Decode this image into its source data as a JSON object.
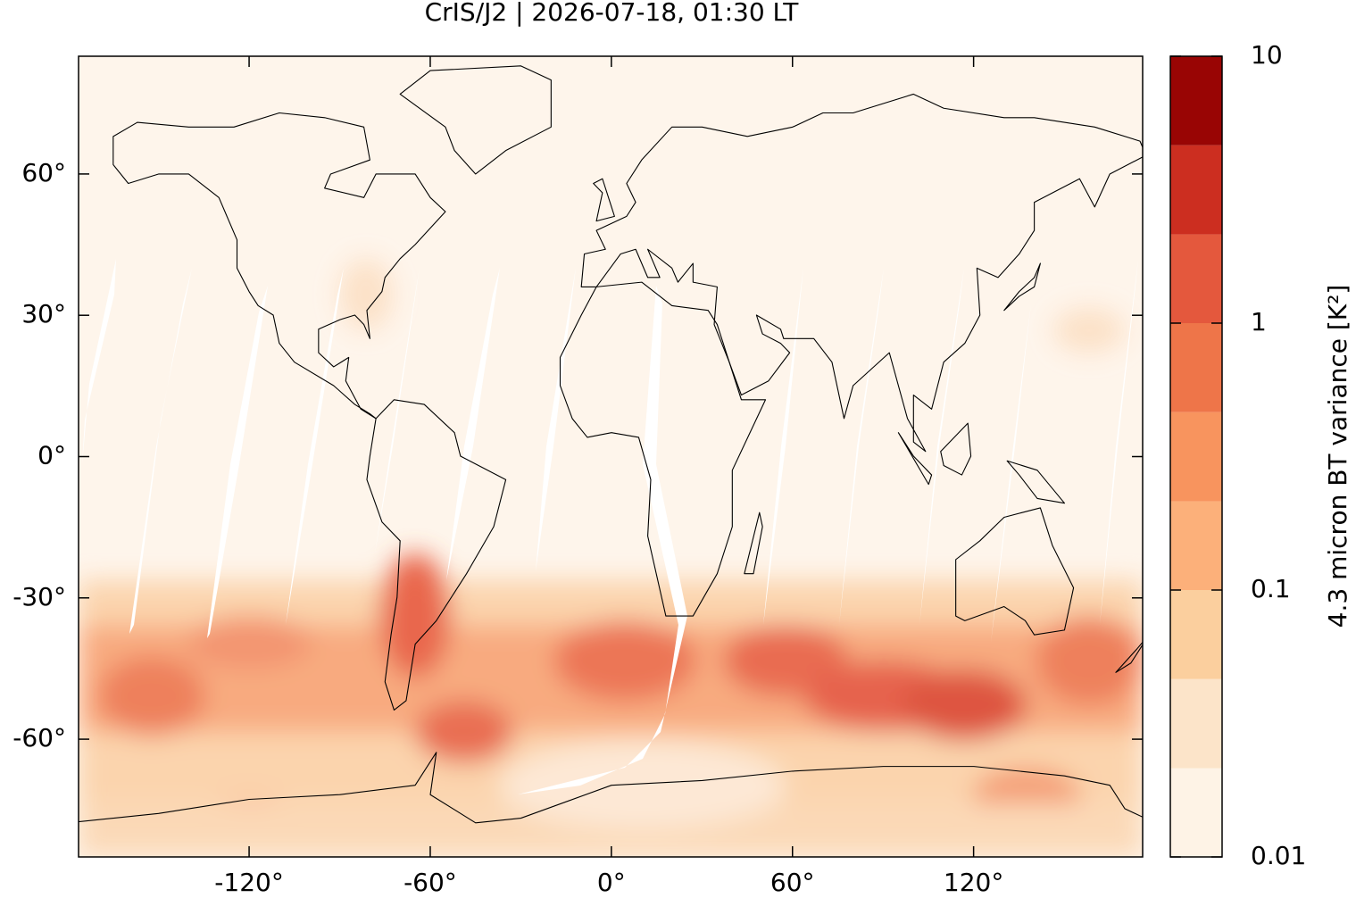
{
  "chart_data": {
    "type": "map",
    "title": "CrIS/J2 | 2026-07-18, 01:30 LT",
    "xlim": [
      -176.5,
      176
    ],
    "ylim": [
      -85,
      85
    ],
    "xticks": [
      {
        "value": -120,
        "label": "-120°"
      },
      {
        "value": -60,
        "label": "-60°"
      },
      {
        "value": 0,
        "label": "0°"
      },
      {
        "value": 60,
        "label": "60°"
      },
      {
        "value": 120,
        "label": "120°"
      }
    ],
    "yticks": [
      {
        "value": -60,
        "label": "-60°"
      },
      {
        "value": -30,
        "label": "-30°"
      },
      {
        "value": 0,
        "label": "0°"
      },
      {
        "value": 30,
        "label": "30°"
      },
      {
        "value": 60,
        "label": "60°"
      }
    ],
    "colorbar": {
      "label": "4.3 micron BT variance [K²]",
      "log_scale": true,
      "lim": [
        0.01,
        10
      ],
      "ticks": [
        0.01,
        0.1,
        1,
        10
      ],
      "levels": [
        0.01,
        0.0215,
        0.0464,
        0.1,
        0.215,
        0.464,
        1,
        2.15,
        4.64,
        10
      ],
      "colors": [
        "#fef3e6",
        "#fce4c9",
        "#fbcf9e",
        "#fcb07a",
        "#f8945e",
        "#ee7549",
        "#e4583d",
        "#cc2e20",
        "#990504"
      ]
    }
  }
}
